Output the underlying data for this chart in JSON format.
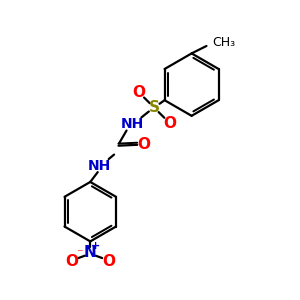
{
  "bg_color": "#ffffff",
  "atom_colors": {
    "C": "#000000",
    "N": "#0000cc",
    "O": "#ff0000",
    "S": "#888800"
  },
  "bond_color": "#000000",
  "bond_width": 1.6,
  "figsize": [
    3.0,
    3.0
  ],
  "dpi": 100,
  "xlim": [
    0,
    10
  ],
  "ylim": [
    0,
    10
  ]
}
